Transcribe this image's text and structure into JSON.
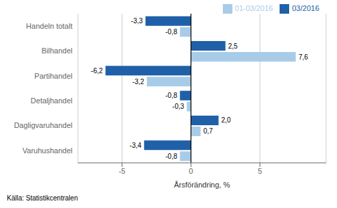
{
  "chart_data": {
    "type": "bar",
    "orientation": "horizontal",
    "categories": [
      "Varuhushandel",
      "Dagligvaruhandel",
      "Detaljhandel",
      "Partihandel",
      "Bilhandel",
      "Handeln totalt"
    ],
    "series": [
      {
        "name": "03/2016",
        "color": "#2060A8",
        "values": [
          -3.4,
          2.0,
          -0.8,
          -6.2,
          2.5,
          -3.3
        ],
        "value_labels": [
          "-3,4",
          "2,0",
          "-0,8",
          "-6,2",
          "2,5",
          "-3,3"
        ]
      },
      {
        "name": "01-03/2016",
        "color": "#A8CCE8",
        "values": [
          -0.8,
          0.7,
          -0.3,
          -3.2,
          7.6,
          -0.8
        ],
        "value_labels": [
          "-0,8",
          "0,7",
          "-0,3",
          "-3,2",
          "7,6",
          "-0,8"
        ]
      }
    ],
    "xlabel": "Årsförändring, %",
    "xlim": [
      -8.2,
      9.8
    ],
    "xticks": [
      -5,
      0,
      5
    ],
    "grid": true,
    "legend": "upper right",
    "data_labels": true,
    "annotations": [
      "Källa: Statistikcentralen"
    ]
  }
}
